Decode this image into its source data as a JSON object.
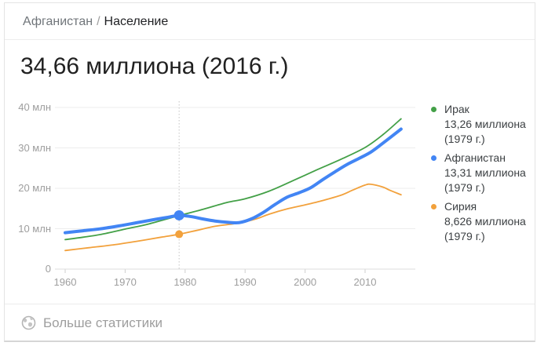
{
  "breadcrumb": {
    "parent": "Афганистан",
    "separator": "/",
    "current": "Население"
  },
  "headline": "34,66 миллиона (2016 г.)",
  "footer": {
    "label": "Больше статистики"
  },
  "colors": {
    "iraq": "#43a047",
    "afghanistan": "#4285f4",
    "syria": "#f2a13c",
    "grid": "#ededed",
    "axis": "#dcdcdc",
    "tick_mark": "#cfcfcf",
    "tick_text": "#9e9e9e",
    "guide_line": "#c4c4c4"
  },
  "chart_data": {
    "type": "line",
    "title": "34,66 миллиона (2016 г.)",
    "xlabel": "",
    "ylabel": "млн",
    "x_ticks": [
      "1960",
      "1970",
      "1980",
      "1990",
      "2000",
      "2010"
    ],
    "x_tick_values": [
      1960,
      1970,
      1980,
      1990,
      2000,
      2010
    ],
    "y_ticks": [
      "40 млн",
      "30 млн",
      "20 млн",
      "10 млн",
      "0"
    ],
    "y_tick_values": [
      40,
      30,
      20,
      10,
      0
    ],
    "x_range": [
      1960,
      2016
    ],
    "ylim": [
      0,
      41
    ],
    "grid": true,
    "highlight_year": 1979,
    "series": [
      {
        "id": "iraq",
        "name": "Ирак",
        "color": "#43a047",
        "width": 1.8,
        "highlight_value": 13.26,
        "dot_radius": 0,
        "x": [
          1960,
          1963,
          1966,
          1970,
          1974,
          1979,
          1983,
          1987,
          1990,
          1994,
          1998,
          2002,
          2006,
          2010,
          2013,
          2016
        ],
        "values": [
          7.3,
          7.9,
          8.6,
          9.9,
          11.2,
          13.26,
          14.8,
          16.5,
          17.4,
          19.3,
          21.9,
          24.6,
          27.2,
          30.1,
          33.3,
          37.2
        ]
      },
      {
        "id": "syria",
        "name": "Сирия",
        "color": "#f2a13c",
        "width": 1.8,
        "highlight_value": 8.63,
        "dot_radius": 5,
        "x": [
          1960,
          1964,
          1968,
          1972,
          1976,
          1979,
          1982,
          1985,
          1988,
          1990,
          1992,
          1994,
          1997,
          2000,
          2003,
          2006,
          2008,
          2010,
          2011,
          2013,
          2014,
          2016
        ],
        "values": [
          4.6,
          5.3,
          6.0,
          6.9,
          7.9,
          8.63,
          9.6,
          10.6,
          11.2,
          11.75,
          12.5,
          13.6,
          14.9,
          15.9,
          17.0,
          18.3,
          19.6,
          20.8,
          21.0,
          20.3,
          19.6,
          18.4
        ]
      },
      {
        "id": "afghanistan",
        "name": "Афганистан",
        "color": "#4285f4",
        "width": 4,
        "highlight_value": 13.31,
        "dot_radius": 6.5,
        "x": [
          1960,
          1963,
          1966,
          1969,
          1972,
          1975,
          1977,
          1979,
          1981,
          1983,
          1985,
          1987,
          1989,
          1991,
          1993,
          1995,
          1997,
          1999,
          2001,
          2003,
          2005,
          2007,
          2009,
          2011,
          2013,
          2016
        ],
        "values": [
          9.0,
          9.5,
          10.0,
          10.7,
          11.5,
          12.3,
          12.8,
          13.31,
          13.0,
          12.4,
          11.9,
          11.6,
          11.5,
          12.4,
          14.0,
          16.0,
          17.8,
          18.9,
          20.2,
          22.2,
          24.1,
          25.9,
          27.4,
          29.0,
          31.2,
          34.66
        ]
      }
    ],
    "legend_position": "right",
    "legend": [
      {
        "id": "iraq",
        "name": "Ирак",
        "value": "13,26 миллиона",
        "year": "(1979 г.)",
        "color": "#43a047"
      },
      {
        "id": "afghanistan",
        "name": "Афганистан",
        "value": "13,31 миллиона",
        "year": "(1979 г.)",
        "color": "#4285f4"
      },
      {
        "id": "syria",
        "name": "Сирия",
        "value": "8,626 миллиона",
        "year": "(1979 г.)",
        "color": "#f2a13c"
      }
    ]
  }
}
